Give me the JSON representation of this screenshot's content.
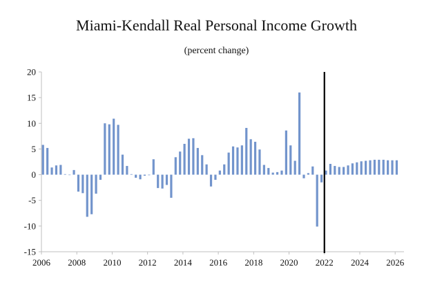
{
  "chart_data": {
    "type": "bar",
    "title": "Miami-Kendall Real Personal Income Growth",
    "subtitle": "(percent change)",
    "xlabel": "",
    "ylabel": "",
    "ylim": [
      -15,
      20
    ],
    "yticks": [
      -15,
      -10,
      -5,
      0,
      5,
      10,
      15,
      20
    ],
    "ytick_labels": [
      "-15",
      "-10",
      "-5",
      "0",
      "5",
      "10",
      "15",
      "20"
    ],
    "xticks": [
      2006,
      2008,
      2010,
      2012,
      2014,
      2016,
      2018,
      2020,
      2022,
      2024,
      2026
    ],
    "xtick_labels": [
      "2006",
      "2008",
      "2010",
      "2012",
      "2014",
      "2016",
      "2018",
      "2020",
      "2022",
      "2024",
      "2026"
    ],
    "x_start": 2006,
    "x_end": 2026.5,
    "frequency": "quarterly",
    "forecast_line_at": 2022.0,
    "bar_color": "#7294cc",
    "series": [
      {
        "name": "Real Personal Income Growth",
        "values": [
          5.8,
          5.2,
          1.4,
          1.8,
          1.9,
          0.1,
          0.0,
          0.9,
          -3.3,
          -3.6,
          -8.2,
          -7.7,
          -3.7,
          -1.0,
          10.0,
          9.8,
          10.9,
          9.7,
          3.9,
          1.7,
          0.1,
          -0.6,
          -0.9,
          -0.2,
          -0.1,
          3.0,
          -2.6,
          -2.7,
          -2.0,
          -4.5,
          3.4,
          4.5,
          6.0,
          7.0,
          7.1,
          5.2,
          3.8,
          2.0,
          -2.3,
          -1.0,
          0.8,
          2.0,
          4.3,
          5.5,
          5.3,
          5.7,
          9.1,
          6.9,
          6.4,
          4.9,
          1.9,
          1.3,
          0.4,
          0.5,
          0.8,
          8.6,
          5.7,
          2.7,
          16.0,
          -0.7,
          0.3,
          1.6,
          -10.1,
          -1.5,
          0.8,
          2.1,
          1.7,
          1.5,
          1.5,
          1.8,
          2.2,
          2.4,
          2.6,
          2.7,
          2.8,
          2.9,
          2.9,
          2.9,
          2.8,
          2.8,
          2.8
        ]
      }
    ]
  }
}
